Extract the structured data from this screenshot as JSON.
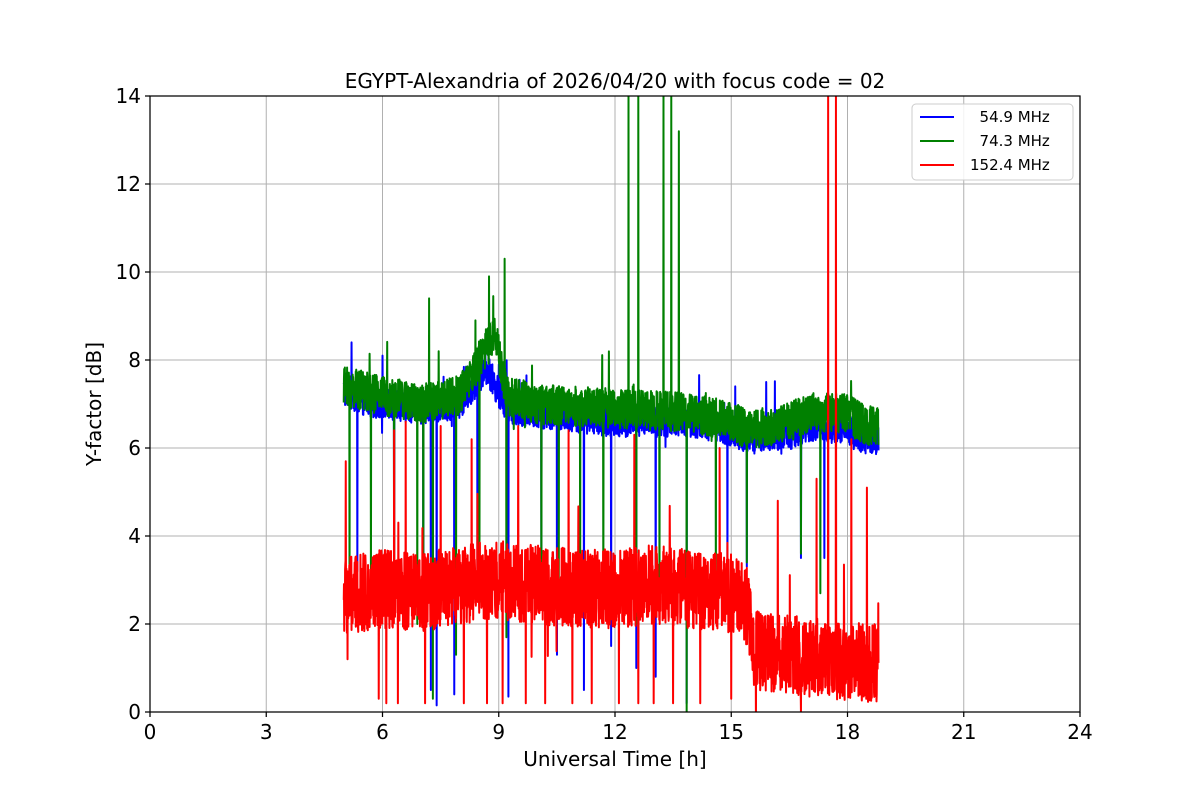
{
  "chart_data": {
    "type": "line",
    "title": "EGYPT-Alexandria of 2026/04/20 with focus code = 02",
    "xlabel": "Universal Time [h]",
    "ylabel": "Y-factor [dB]",
    "xlim": [
      0,
      24
    ],
    "ylim": [
      0,
      14
    ],
    "xticks": [
      0,
      3,
      6,
      9,
      12,
      15,
      18,
      21,
      24
    ],
    "xtick_labels": [
      "0",
      "3",
      "6",
      "9",
      "12",
      "15",
      "18",
      "21",
      "24"
    ],
    "yticks": [
      0,
      2,
      4,
      6,
      8,
      10,
      12,
      14
    ],
    "ytick_labels": [
      "0",
      "2",
      "4",
      "6",
      "8",
      "10",
      "12",
      "14"
    ],
    "grid": true,
    "legend_position": "top-right",
    "series": [
      {
        "name": "  54.9 MHz",
        "color": "#0000ff",
        "x_range": [
          5.0,
          18.8
        ],
        "level_profile": [
          [
            5.0,
            7.3
          ],
          [
            5.5,
            7.1
          ],
          [
            6.0,
            7.0
          ],
          [
            7.0,
            6.9
          ],
          [
            8.0,
            7.0
          ],
          [
            8.7,
            7.8
          ],
          [
            9.2,
            6.9
          ],
          [
            10.0,
            6.8
          ],
          [
            12.0,
            6.6
          ],
          [
            14.0,
            6.6
          ],
          [
            15.0,
            6.4
          ],
          [
            15.5,
            6.2
          ],
          [
            16.0,
            6.3
          ],
          [
            16.5,
            6.3
          ],
          [
            17.0,
            6.5
          ],
          [
            18.0,
            6.4
          ],
          [
            18.5,
            6.2
          ],
          [
            18.8,
            6.2
          ]
        ],
        "noise": 0.35,
        "dropouts": [
          [
            5.35,
            3.2
          ],
          [
            6.3,
            3.4
          ],
          [
            7.05,
            2.1
          ],
          [
            7.25,
            0.5
          ],
          [
            7.4,
            0.15
          ],
          [
            7.85,
            0.4
          ],
          [
            8.45,
            2.7
          ],
          [
            9.25,
            0.35
          ],
          [
            10.1,
            3.6
          ],
          [
            10.5,
            1.3
          ],
          [
            11.2,
            0.5
          ],
          [
            11.9,
            1.5
          ],
          [
            12.55,
            1.0
          ],
          [
            13.05,
            0.8
          ],
          [
            13.85,
            0.2
          ],
          [
            14.9,
            3.3
          ],
          [
            15.4,
            3.3
          ],
          [
            16.8,
            3.5
          ],
          [
            17.4,
            3.5
          ]
        ],
        "spikes": [
          [
            5.2,
            8.4
          ],
          [
            6.0,
            8.1
          ],
          [
            8.65,
            8.4
          ],
          [
            9.0,
            7.9
          ],
          [
            15.1,
            7.4
          ],
          [
            15.9,
            7.5
          ]
        ]
      },
      {
        "name": "  74.3 MHz",
        "color": "#008000",
        "x_range": [
          5.0,
          18.8
        ],
        "level_profile": [
          [
            5.0,
            7.4
          ],
          [
            5.5,
            7.3
          ],
          [
            6.0,
            7.2
          ],
          [
            7.0,
            7.0
          ],
          [
            8.0,
            7.2
          ],
          [
            8.5,
            8.0
          ],
          [
            8.9,
            8.6
          ],
          [
            9.2,
            7.2
          ],
          [
            10.0,
            7.0
          ],
          [
            12.0,
            6.9
          ],
          [
            14.0,
            6.8
          ],
          [
            15.0,
            6.6
          ],
          [
            15.5,
            6.4
          ],
          [
            16.0,
            6.5
          ],
          [
            16.5,
            6.6
          ],
          [
            17.0,
            6.8
          ],
          [
            18.0,
            6.8
          ],
          [
            18.5,
            6.5
          ],
          [
            18.8,
            6.5
          ]
        ],
        "noise": 0.45,
        "dropouts": [
          [
            5.15,
            2.5
          ],
          [
            5.7,
            2.6
          ],
          [
            6.3,
            2.2
          ],
          [
            6.9,
            2.0
          ],
          [
            7.05,
            2.1
          ],
          [
            7.3,
            0.3
          ],
          [
            7.9,
            1.3
          ],
          [
            8.5,
            2.5
          ],
          [
            9.2,
            1.7
          ],
          [
            10.1,
            2.4
          ],
          [
            10.55,
            2.2
          ],
          [
            11.1,
            2.4
          ],
          [
            11.7,
            2.6
          ],
          [
            12.55,
            2.0
          ],
          [
            13.15,
            2.7
          ],
          [
            13.85,
            0.0
          ],
          [
            14.6,
            2.7
          ],
          [
            15.4,
            3.4
          ],
          [
            16.8,
            3.6
          ],
          [
            17.3,
            2.7
          ]
        ],
        "spikes": [
          [
            7.2,
            9.4
          ],
          [
            7.45,
            8.2
          ],
          [
            8.4,
            8.9
          ],
          [
            8.75,
            9.9
          ],
          [
            9.15,
            10.3
          ],
          [
            12.35,
            14.0
          ],
          [
            12.6,
            14.0
          ],
          [
            13.25,
            14.0
          ],
          [
            13.45,
            14.0
          ],
          [
            13.65,
            13.2
          ]
        ]
      },
      {
        "name": "152.4 MHz",
        "color": "#ff0000",
        "x_range": [
          5.0,
          18.8
        ],
        "level_profile": [
          [
            5.0,
            2.6
          ],
          [
            6.0,
            2.8
          ],
          [
            7.0,
            2.7
          ],
          [
            8.0,
            2.9
          ],
          [
            9.0,
            3.0
          ],
          [
            10.0,
            2.9
          ],
          [
            11.0,
            2.8
          ],
          [
            12.0,
            2.8
          ],
          [
            13.0,
            2.9
          ],
          [
            14.0,
            2.8
          ],
          [
            15.0,
            2.7
          ],
          [
            15.4,
            2.4
          ],
          [
            15.6,
            1.4
          ],
          [
            16.5,
            1.3
          ],
          [
            17.5,
            1.2
          ],
          [
            18.8,
            1.1
          ]
        ],
        "noise": 0.9,
        "dropouts": [
          [
            5.1,
            1.2
          ],
          [
            5.9,
            0.3
          ],
          [
            6.1,
            0.2
          ],
          [
            6.4,
            0.2
          ],
          [
            7.1,
            0.2
          ],
          [
            7.5,
            0.1
          ],
          [
            8.1,
            0.2
          ],
          [
            8.7,
            0.2
          ],
          [
            9.1,
            0.2
          ],
          [
            9.7,
            0.2
          ],
          [
            10.2,
            0.2
          ],
          [
            10.9,
            0.2
          ],
          [
            11.4,
            0.2
          ],
          [
            12.1,
            0.2
          ],
          [
            12.6,
            0.2
          ],
          [
            13.0,
            0.2
          ],
          [
            13.5,
            0.2
          ],
          [
            14.2,
            0.2
          ],
          [
            15.0,
            0.3
          ],
          [
            15.6,
            0.7
          ],
          [
            16.8,
            0.0
          ],
          [
            17.5,
            0.5
          ]
        ],
        "spikes": [
          [
            5.05,
            5.7
          ],
          [
            6.3,
            6.4
          ],
          [
            6.6,
            6.6
          ],
          [
            7.5,
            6.5
          ],
          [
            8.3,
            6.2
          ],
          [
            9.5,
            6.5
          ],
          [
            10.8,
            6.4
          ],
          [
            12.5,
            6.3
          ],
          [
            14.7,
            6.0
          ],
          [
            16.2,
            4.8
          ],
          [
            17.2,
            5.3
          ],
          [
            17.5,
            14.0
          ],
          [
            17.7,
            14.0
          ],
          [
            18.1,
            6.2
          ],
          [
            18.5,
            5.1
          ]
        ]
      }
    ]
  }
}
